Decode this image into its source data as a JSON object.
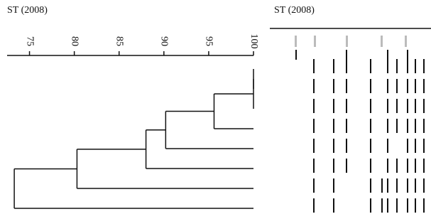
{
  "chart_data": {
    "type": "dendrogram",
    "title": "ST (2008)",
    "panel_title": "ST (2008)",
    "xlim": [
      72.5,
      100
    ],
    "xticks": [
      75,
      80,
      85,
      90,
      95,
      100
    ],
    "linkage": [
      [
        0,
        1,
        100
      ],
      [
        8,
        2,
        100
      ],
      [
        9,
        3,
        95.6
      ],
      [
        10,
        4,
        90.2
      ],
      [
        11,
        5,
        88
      ],
      [
        12,
        6,
        80.3
      ],
      [
        13,
        7,
        73.3
      ]
    ]
  }
}
